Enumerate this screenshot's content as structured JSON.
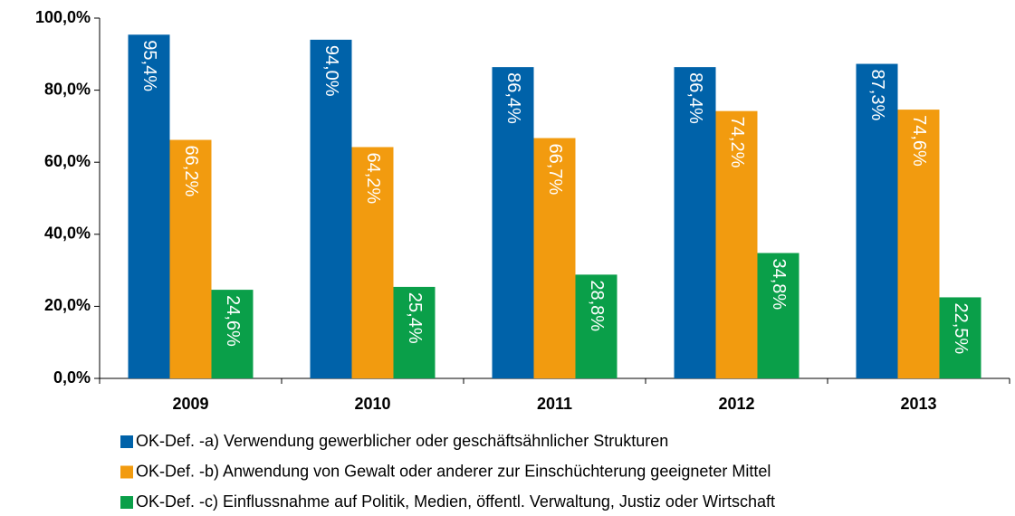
{
  "chart_data": {
    "type": "bar",
    "categories": [
      "2009",
      "2010",
      "2011",
      "2012",
      "2013"
    ],
    "series": [
      {
        "name": "OK-Def. -a) Verwendung gewerblicher oder geschäftsähnlicher Strukturen",
        "color": "#0062a9",
        "values": [
          95.4,
          94.0,
          86.4,
          86.4,
          87.3
        ],
        "value_labels": [
          "95,4%",
          "94,0%",
          "86,4%",
          "86,4%",
          "87,3%"
        ]
      },
      {
        "name": "OK-Def. -b) Anwendung von Gewalt oder anderer zur Einschüchterung geeigneter Mittel",
        "color": "#f29b0f",
        "values": [
          66.2,
          64.2,
          66.7,
          74.2,
          74.6
        ],
        "value_labels": [
          "66,2%",
          "64,2%",
          "66,7%",
          "74,2%",
          "74,6%"
        ]
      },
      {
        "name": "OK-Def. -c) Einflussnahme auf Politik, Medien, öffentl. Verwaltung, Justiz  oder Wirtschaft",
        "color": "#0a9f49",
        "values": [
          24.6,
          25.4,
          28.8,
          34.8,
          22.5
        ],
        "value_labels": [
          "24,6%",
          "25,4%",
          "28,8%",
          "34,8%",
          "22,5%"
        ]
      }
    ],
    "ylim": [
      0,
      100
    ],
    "yticks": [
      {
        "value": 0,
        "label": "0,0%"
      },
      {
        "value": 20,
        "label": "20,0%"
      },
      {
        "value": 40,
        "label": "40,0%"
      },
      {
        "value": 60,
        "label": "60,0%"
      },
      {
        "value": 80,
        "label": "80,0%"
      },
      {
        "value": 100,
        "label": "100,0%"
      }
    ],
    "legend": "bottom"
  }
}
